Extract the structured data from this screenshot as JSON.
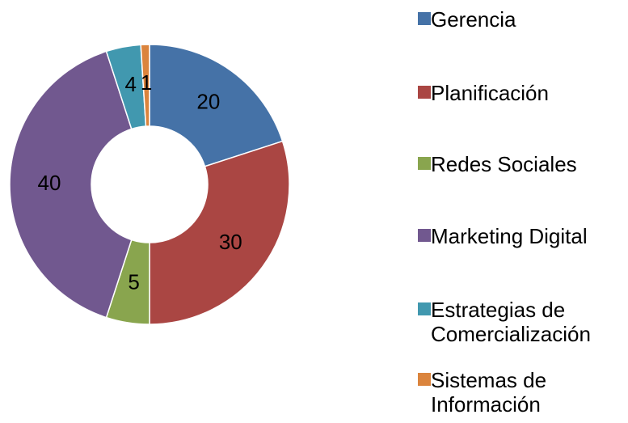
{
  "chart_data": {
    "type": "donut",
    "categories": [
      "Gerencia",
      "Planificación",
      "Redes Sociales",
      "Marketing Digital",
      "Estrategias de Comercialización",
      "Sistemas de Información"
    ],
    "values": [
      20,
      30,
      5,
      40,
      4,
      1
    ],
    "colors": [
      "#4572a7",
      "#aa4643",
      "#89a54e",
      "#71588f",
      "#4198af",
      "#db843d"
    ],
    "legend": "right"
  }
}
